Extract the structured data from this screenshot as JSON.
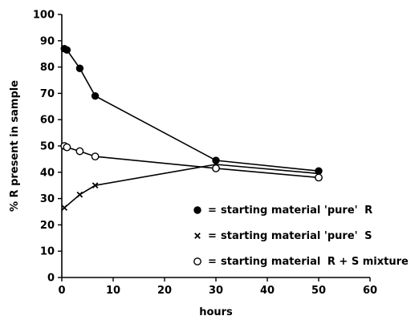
{
  "chart_data": {
    "type": "line",
    "xlabel": "hours",
    "ylabel": "% R present in sample",
    "xlim": [
      0,
      60
    ],
    "ylim": [
      0,
      100
    ],
    "xticks": [
      0,
      10,
      20,
      30,
      40,
      50,
      60
    ],
    "yticks": [
      0,
      10,
      20,
      30,
      40,
      50,
      60,
      70,
      80,
      90,
      100
    ],
    "grid": false,
    "legend_position": "bottom-right",
    "series": [
      {
        "name": "starting material 'pure' R",
        "marker": "filled-circle",
        "x": [
          0.5,
          1,
          3.5,
          6.5,
          30,
          50
        ],
        "y": [
          87,
          86.5,
          79.5,
          69,
          44.5,
          40.5
        ]
      },
      {
        "name": "starting material 'pure' S",
        "marker": "cross",
        "x": [
          0.5,
          3.5,
          6.5,
          30,
          50
        ],
        "y": [
          26.5,
          31.5,
          35,
          43,
          39.5
        ]
      },
      {
        "name": "starting material R + S mixture",
        "marker": "open-circle",
        "x": [
          0.5,
          1,
          3.5,
          6.5,
          30,
          50
        ],
        "y": [
          50,
          49.5,
          48,
          46,
          41.5,
          38
        ]
      }
    ]
  },
  "legend": {
    "separator": "=",
    "items": [
      {
        "prefix": "starting material 'pure' ",
        "suffix": "R"
      },
      {
        "prefix": "starting material 'pure' ",
        "suffix": "S"
      },
      {
        "prefix": "starting material ",
        "suffix": "R + S mixture"
      }
    ]
  }
}
